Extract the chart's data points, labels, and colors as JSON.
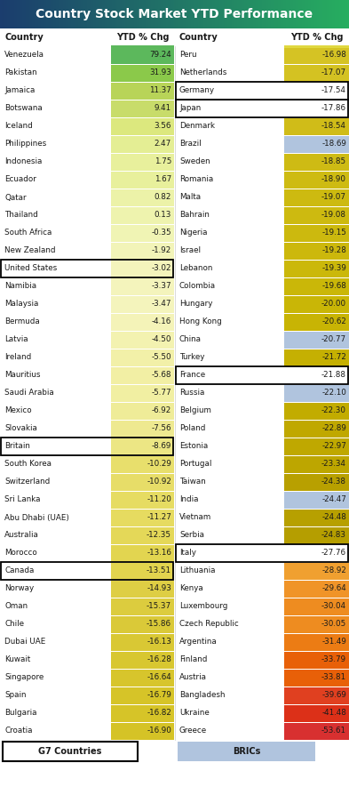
{
  "title": "Country Stock Market YTD Performance",
  "left_data": [
    {
      "country": "Venezuela",
      "value": 79.24,
      "bg": "#5cb85c",
      "border": null
    },
    {
      "country": "Pakistan",
      "value": 31.93,
      "bg": "#8bc94a",
      "border": null
    },
    {
      "country": "Jamaica",
      "value": 11.37,
      "bg": "#b8d458",
      "border": null
    },
    {
      "country": "Botswana",
      "value": 9.41,
      "bg": "#c8dc6a",
      "border": null
    },
    {
      "country": "Iceland",
      "value": 3.56,
      "bg": "#dce87e",
      "border": null
    },
    {
      "country": "Philippines",
      "value": 2.47,
      "bg": "#e4ee94",
      "border": null
    },
    {
      "country": "Indonesia",
      "value": 1.75,
      "bg": "#e8f09c",
      "border": null
    },
    {
      "country": "Ecuador",
      "value": 1.67,
      "bg": "#e8f09c",
      "border": null
    },
    {
      "country": "Qatar",
      "value": 0.82,
      "bg": "#ecf2a8",
      "border": null
    },
    {
      "country": "Thailand",
      "value": 0.13,
      "bg": "#eef3ae",
      "border": null
    },
    {
      "country": "South Africa",
      "value": -0.35,
      "bg": "#f0f4b4",
      "border": null
    },
    {
      "country": "New Zealand",
      "value": -1.92,
      "bg": "#f2f4b8",
      "border": null
    },
    {
      "country": "United States",
      "value": -3.02,
      "bg": "#f4f4bc",
      "border": "black"
    },
    {
      "country": "Namibia",
      "value": -3.37,
      "bg": "#f4f4bc",
      "border": null
    },
    {
      "country": "Malaysia",
      "value": -3.47,
      "bg": "#f4f4bc",
      "border": null
    },
    {
      "country": "Bermuda",
      "value": -4.16,
      "bg": "#f4f3b8",
      "border": null
    },
    {
      "country": "Latvia",
      "value": -4.5,
      "bg": "#f3f2b0",
      "border": null
    },
    {
      "country": "Ireland",
      "value": -5.5,
      "bg": "#f2f0a8",
      "border": null
    },
    {
      "country": "Mauritius",
      "value": -5.68,
      "bg": "#f2efa4",
      "border": null
    },
    {
      "country": "Saudi Arabia",
      "value": -5.77,
      "bg": "#f1efa2",
      "border": null
    },
    {
      "country": "Mexico",
      "value": -6.92,
      "bg": "#efec98",
      "border": null
    },
    {
      "country": "Slovakia",
      "value": -7.56,
      "bg": "#eee990",
      "border": null
    },
    {
      "country": "Britain",
      "value": -8.69,
      "bg": "#ece684",
      "border": "black"
    },
    {
      "country": "South Korea",
      "value": -10.29,
      "bg": "#e8df6c",
      "border": null
    },
    {
      "country": "Switzerland",
      "value": -10.92,
      "bg": "#e7dd68",
      "border": null
    },
    {
      "country": "Sri Lanka",
      "value": -11.2,
      "bg": "#e6dc62",
      "border": null
    },
    {
      "country": "Abu Dhabi (UAE)",
      "value": -11.27,
      "bg": "#e6db60",
      "border": null
    },
    {
      "country": "Australia",
      "value": -12.35,
      "bg": "#e4d858",
      "border": null
    },
    {
      "country": "Morocco",
      "value": -13.16,
      "bg": "#e2d550",
      "border": null
    },
    {
      "country": "Canada",
      "value": -13.51,
      "bg": "#e2d44e",
      "border": "black"
    },
    {
      "country": "Norway",
      "value": -14.93,
      "bg": "#dece44",
      "border": null
    },
    {
      "country": "Oman",
      "value": -15.37,
      "bg": "#dccc3e",
      "border": null
    },
    {
      "country": "Chile",
      "value": -15.86,
      "bg": "#dac938",
      "border": null
    },
    {
      "country": "Dubai UAE",
      "value": -16.13,
      "bg": "#d9c834",
      "border": null
    },
    {
      "country": "Kuwait",
      "value": -16.28,
      "bg": "#d8c730",
      "border": null
    },
    {
      "country": "Singapore",
      "value": -16.64,
      "bg": "#d7c52c",
      "border": null
    },
    {
      "country": "Spain",
      "value": -16.79,
      "bg": "#d6c428",
      "border": null
    },
    {
      "country": "Bulgaria",
      "value": -16.82,
      "bg": "#d6c428",
      "border": null
    },
    {
      "country": "Croatia",
      "value": -16.9,
      "bg": "#d5c326",
      "border": null
    }
  ],
  "right_data": [
    {
      "country": "Peru",
      "value": -16.98,
      "bg": "#d5c324",
      "border": null
    },
    {
      "country": "Netherlands",
      "value": -17.07,
      "bg": "#d4c222",
      "border": null
    },
    {
      "country": "Germany",
      "value": -17.54,
      "bg": "#ffffff",
      "border": "black"
    },
    {
      "country": "Japan",
      "value": -17.86,
      "bg": "#ffffff",
      "border": "black"
    },
    {
      "country": "Denmark",
      "value": -18.54,
      "bg": "#d0bc18",
      "border": null
    },
    {
      "country": "Brazil",
      "value": -18.69,
      "bg": "#b0c4de",
      "border": null
    },
    {
      "country": "Sweden",
      "value": -18.85,
      "bg": "#cebb14",
      "border": null
    },
    {
      "country": "Romania",
      "value": -18.9,
      "bg": "#cebb12",
      "border": null
    },
    {
      "country": "Malta",
      "value": -19.07,
      "bg": "#cdba10",
      "border": null
    },
    {
      "country": "Bahrain",
      "value": -19.08,
      "bg": "#cdba10",
      "border": null
    },
    {
      "country": "Nigeria",
      "value": -19.15,
      "bg": "#ccb90e",
      "border": null
    },
    {
      "country": "Israel",
      "value": -19.28,
      "bg": "#ccb80c",
      "border": null
    },
    {
      "country": "Lebanon",
      "value": -19.39,
      "bg": "#cbb80a",
      "border": null
    },
    {
      "country": "Colombia",
      "value": -19.68,
      "bg": "#cab708",
      "border": null
    },
    {
      "country": "Hungary",
      "value": -20.0,
      "bg": "#c9b606",
      "border": null
    },
    {
      "country": "Hong Kong",
      "value": -20.62,
      "bg": "#c8b404",
      "border": null
    },
    {
      "country": "China",
      "value": -20.77,
      "bg": "#b0c4de",
      "border": null
    },
    {
      "country": "Turkey",
      "value": -21.72,
      "bg": "#c5b002",
      "border": null
    },
    {
      "country": "France",
      "value": -21.88,
      "bg": "#ffffff",
      "border": "black"
    },
    {
      "country": "Russia",
      "value": -22.1,
      "bg": "#b0c4de",
      "border": null
    },
    {
      "country": "Belgium",
      "value": -22.3,
      "bg": "#c2ac00",
      "border": null
    },
    {
      "country": "Poland",
      "value": -22.89,
      "bg": "#c0a800",
      "border": null
    },
    {
      "country": "Estonia",
      "value": -22.97,
      "bg": "#bfa800",
      "border": null
    },
    {
      "country": "Portugal",
      "value": -23.34,
      "bg": "#bda600",
      "border": null
    },
    {
      "country": "Taiwan",
      "value": -24.38,
      "bg": "#b8a000",
      "border": null
    },
    {
      "country": "India",
      "value": -24.47,
      "bg": "#b0c4de",
      "border": null
    },
    {
      "country": "Vietnam",
      "value": -24.48,
      "bg": "#b7a000",
      "border": null
    },
    {
      "country": "Serbia",
      "value": -24.83,
      "bg": "#b59e00",
      "border": null
    },
    {
      "country": "Italy",
      "value": -27.76,
      "bg": "#ffffff",
      "border": "black"
    },
    {
      "country": "Lithuania",
      "value": -28.92,
      "bg": "#f0a030",
      "border": null
    },
    {
      "country": "Kenya",
      "value": -29.64,
      "bg": "#f09428",
      "border": null
    },
    {
      "country": "Luxembourg",
      "value": -30.04,
      "bg": "#ee8c20",
      "border": null
    },
    {
      "country": "Czech Republic",
      "value": -30.05,
      "bg": "#ee8c20",
      "border": null
    },
    {
      "country": "Argentina",
      "value": -31.49,
      "bg": "#ec7c14",
      "border": null
    },
    {
      "country": "Finland",
      "value": -33.79,
      "bg": "#e86008",
      "border": null
    },
    {
      "country": "Austria",
      "value": -33.81,
      "bg": "#e86008",
      "border": null
    },
    {
      "country": "Bangladesh",
      "value": -39.69,
      "bg": "#e04020",
      "border": null
    },
    {
      "country": "Ukraine",
      "value": -41.48,
      "bg": "#dc3018",
      "border": null
    },
    {
      "country": "Greece",
      "value": -53.61,
      "bg": "#d83030",
      "border": null
    }
  ],
  "col_header_color": "#1a1a1a",
  "row_text_color": "#1a1a1a",
  "legend_brics_bg": "#b0c4de"
}
